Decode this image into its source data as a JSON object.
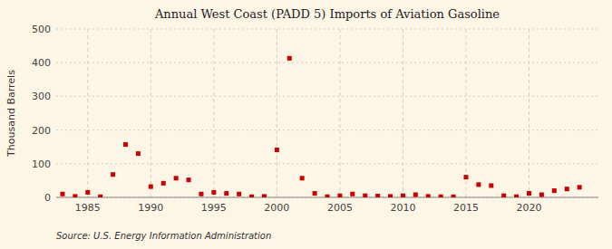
{
  "chart_data": {
    "type": "scatter",
    "title": "Annual West Coast (PADD 5) Imports of Aviation Gasoline",
    "ylabel": "Thousand Barrels",
    "source": "Source: U.S. Energy Information Administration",
    "color": "#cc0000",
    "marker": "square",
    "grid": true,
    "xlim": [
      1982.5,
      2025.5
    ],
    "ylim": [
      0,
      500
    ],
    "xticks": [
      1985,
      1990,
      1995,
      2000,
      2005,
      2010,
      2015,
      2020
    ],
    "yticks": [
      0,
      100,
      200,
      300,
      400,
      500
    ],
    "x": [
      1983,
      1984,
      1985,
      1986,
      1987,
      1988,
      1989,
      1990,
      1991,
      1992,
      1993,
      1994,
      1995,
      1996,
      1997,
      1998,
      1999,
      2000,
      2001,
      2002,
      2003,
      2004,
      2005,
      2006,
      2007,
      2008,
      2009,
      2010,
      2011,
      2012,
      2013,
      2014,
      2015,
      2016,
      2017,
      2018,
      2019,
      2020,
      2021,
      2022,
      2023,
      2024
    ],
    "values": [
      10,
      3,
      15,
      2,
      68,
      157,
      130,
      32,
      42,
      57,
      52,
      10,
      15,
      12,
      10,
      2,
      3,
      141,
      413,
      57,
      12,
      2,
      5,
      10,
      5,
      4,
      3,
      5,
      8,
      3,
      2,
      2,
      60,
      38,
      35,
      5,
      2,
      12,
      8,
      20,
      25,
      30
    ]
  }
}
